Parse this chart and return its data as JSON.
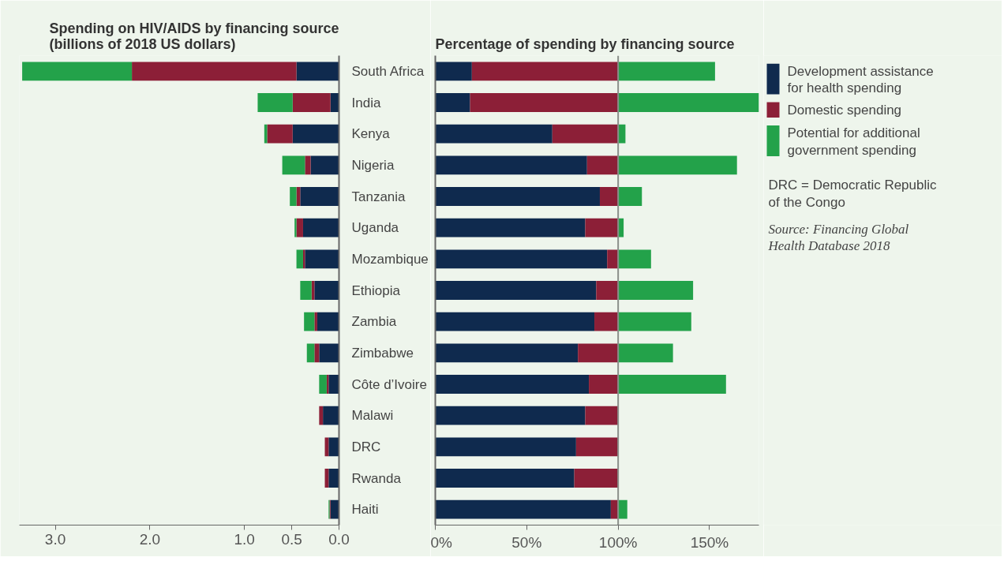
{
  "chart_data": [
    {
      "type": "bar",
      "orientation": "horizontal",
      "stacked": true,
      "title": "Spending on HIV/AIDS by financing source\n(billions of 2018 US dollars)",
      "categories": [
        "South Africa",
        "India",
        "Kenya",
        "Nigeria",
        "Tanzania",
        "Uganda",
        "Mozambique",
        "Ethiopia",
        "Zambia",
        "Zimbabwe",
        "Côte d’Ivoire",
        "Malawi",
        "DRC",
        "Rwanda",
        "Haiti"
      ],
      "series": [
        {
          "color": "#0f2a4e",
          "values": [
            0.45,
            0.09,
            0.49,
            0.3,
            0.41,
            0.38,
            0.36,
            0.26,
            0.23,
            0.21,
            0.11,
            0.17,
            0.11,
            0.11,
            0.09
          ]
        },
        {
          "color": "#8c1f37",
          "values": [
            1.74,
            0.4,
            0.27,
            0.06,
            0.04,
            0.07,
            0.02,
            0.03,
            0.03,
            0.05,
            0.02,
            0.04,
            0.04,
            0.04,
            0.01
          ]
        },
        {
          "color": "#23a24a",
          "values": [
            1.16,
            0.37,
            0.03,
            0.24,
            0.07,
            0.02,
            0.07,
            0.12,
            0.11,
            0.08,
            0.08,
            null,
            null,
            null,
            0.01
          ]
        }
      ],
      "xlim": [
        3.38,
        0
      ],
      "xticks": [
        {
          "value": 3,
          "label": "3.0"
        },
        {
          "value": 2,
          "label": "2.0"
        },
        {
          "value": 1,
          "label": "1.0"
        },
        0.5,
        {
          "value": 0,
          "label": "0.0"
        }
      ]
    },
    {
      "type": "bar",
      "orientation": "horizontal",
      "stacked": true,
      "title": "Percentage of spending by financing source",
      "categories": [
        null,
        null,
        null,
        null,
        null,
        null,
        null,
        null,
        null,
        null,
        null,
        null,
        null,
        null,
        null
      ],
      "series": [
        {
          "name": "Development assistance for health spending",
          "color": "#0f2a4e",
          "values": [
            20,
            19,
            64,
            83,
            90,
            82,
            94,
            88,
            87,
            78,
            84,
            82,
            77,
            76,
            96
          ]
        },
        {
          "name": "Domestic spending",
          "color": "#8c1f37",
          "values": [
            80,
            81,
            36,
            17,
            10,
            18,
            6,
            12,
            13,
            22,
            16,
            18,
            23,
            24,
            4
          ]
        },
        {
          "name": "Potential for additional government spending",
          "color": "#23a24a",
          "values": [
            53,
            77,
            4,
            65,
            13,
            3,
            18,
            41,
            40,
            30,
            59,
            null,
            null,
            null,
            5
          ]
        }
      ],
      "xlim": [
        0,
        177
      ],
      "xticks": [
        {
          "value": 0,
          "label": "0%"
        },
        {
          "value": 50,
          "label": "50%"
        },
        {
          "value": 100,
          "label": "100%"
        },
        {
          "value": 150,
          "label": "150%"
        }
      ],
      "tick_labels": "x",
      "legend": "right",
      "ref_lines": [
        {
          "axis": "x",
          "value": 100,
          "color": "#8a8f8a"
        }
      ],
      "annotations": [
        "DRC = Democratic Republic of the Congo",
        "Source: Financing Global Health Database 2018"
      ]
    }
  ]
}
